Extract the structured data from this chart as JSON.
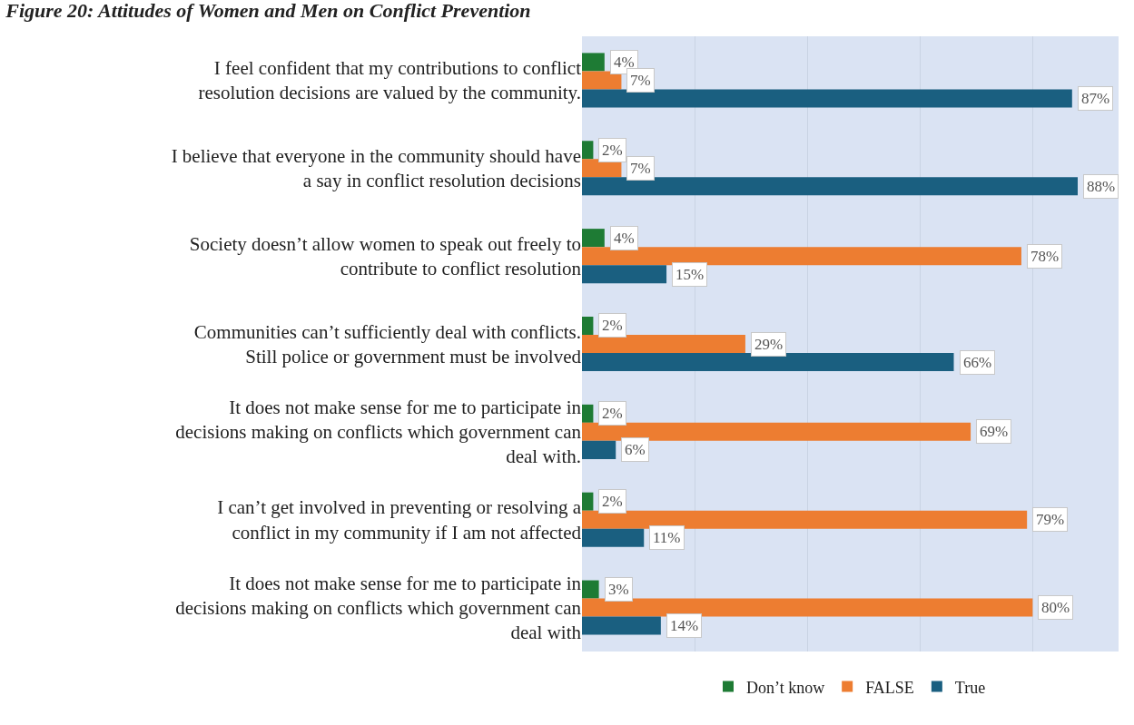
{
  "chart_data": {
    "type": "bar",
    "orientation": "horizontal",
    "title": "Figure 20: Attitudes of Women and Men on Conflict Prevention",
    "categories": [
      "I feel confident that my contributions to conflict resolution decisions are valued by the community.",
      "I believe that everyone in the community should have a say in conflict resolution decisions",
      "Society doesn’t allow women to speak out freely to contribute to conflict resolution",
      "Communities can’t sufficiently deal with conflicts. Still police or government must be involved",
      "It does not make sense for me to participate in decisions making on conflicts which government can deal with.",
      "I can’t get involved in preventing or resolving a conflict in my community if I am not affected",
      "It does not make sense for me to participate in decisions making on conflicts which government can deal with"
    ],
    "series": [
      {
        "name": "Don’t know",
        "color": "#1e7b34",
        "values": [
          4,
          2,
          4,
          2,
          2,
          2,
          3
        ],
        "value_labels": [
          "4%",
          "2%",
          "4%",
          "2%",
          "2%",
          "2%",
          "3%"
        ]
      },
      {
        "name": "FALSE",
        "color": "#ed7d31",
        "values": [
          7,
          7,
          78,
          29,
          69,
          79,
          80
        ],
        "value_labels": [
          "7%",
          "7%",
          "78%",
          "29%",
          "69%",
          "79%",
          "80%"
        ]
      },
      {
        "name": "True",
        "color": "#1a5f80",
        "values": [
          87,
          88,
          15,
          66,
          6,
          11,
          14
        ],
        "value_labels": [
          "87%",
          "88%",
          "15%",
          "66%",
          "6%",
          "11%",
          "14%"
        ]
      }
    ],
    "tick_labels": "y",
    "grid": "x",
    "legend": "bottom"
  }
}
